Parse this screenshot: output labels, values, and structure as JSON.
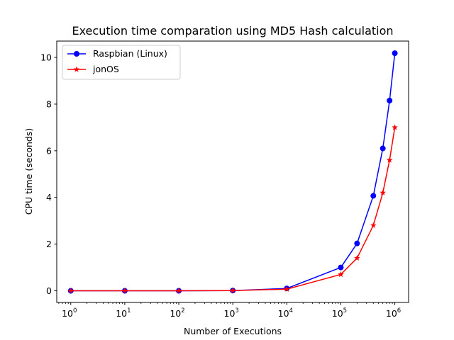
{
  "chart_data": {
    "type": "line",
    "title": "Execution time comparation using MD5 Hash calculation",
    "xlabel": "Number of Executions",
    "ylabel": "CPU time (seconds)",
    "xscale": "log",
    "xlim": [
      0.55,
      1800000
    ],
    "ylim": [
      -0.5,
      10.7
    ],
    "x": [
      1,
      10,
      100,
      1000,
      10000,
      100000,
      200000,
      400000,
      600000,
      800000,
      1000000
    ],
    "series": [
      {
        "name": "Raspbian (Linux)",
        "color": "#0000ff",
        "marker": "circle",
        "values": [
          0.0,
          0.0,
          0.0,
          0.01,
          0.1,
          1.0,
          2.03,
          4.07,
          6.1,
          8.15,
          10.18
        ]
      },
      {
        "name": "jonOS",
        "color": "#ff0000",
        "marker": "star",
        "values": [
          0.0,
          0.0,
          0.0,
          0.01,
          0.07,
          0.7,
          1.4,
          2.8,
          4.2,
          5.6,
          7.0
        ]
      }
    ],
    "xticks": [
      {
        "base": "10",
        "exp": "0"
      },
      {
        "base": "10",
        "exp": "1"
      },
      {
        "base": "10",
        "exp": "2"
      },
      {
        "base": "10",
        "exp": "3"
      },
      {
        "base": "10",
        "exp": "4"
      },
      {
        "base": "10",
        "exp": "5"
      },
      {
        "base": "10",
        "exp": "6"
      }
    ],
    "yticks": [
      "0",
      "2",
      "4",
      "6",
      "8",
      "10"
    ],
    "ytick_values": [
      0,
      2,
      4,
      6,
      8,
      10
    ],
    "legend_position": "upper-left",
    "grid": false
  }
}
